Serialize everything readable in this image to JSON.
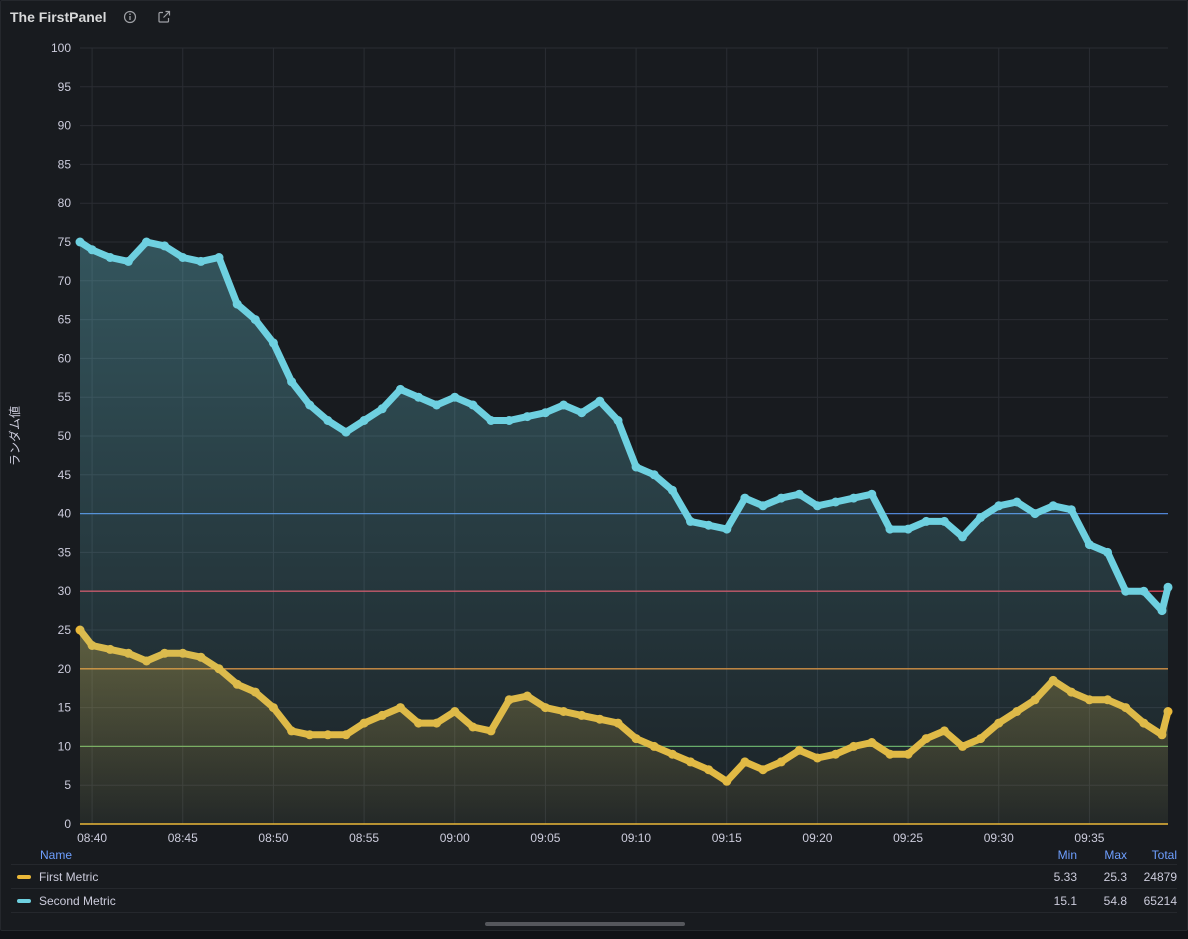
{
  "panel": {
    "title": "The FirstPanel",
    "info_icon": "info-icon",
    "link_icon": "external-link-icon"
  },
  "colors": {
    "first": "#eab839",
    "second": "#6ed0e0",
    "grid": "#2a2d33",
    "text": "#ccccdc"
  },
  "chart_data": {
    "type": "line",
    "ylabel": "ランダム値",
    "ylim": [
      0,
      100
    ],
    "yticks": [
      0,
      5,
      10,
      15,
      20,
      25,
      30,
      35,
      40,
      45,
      50,
      55,
      60,
      65,
      70,
      75,
      80,
      85,
      90,
      95,
      100
    ],
    "xlim": [
      "08:39:20",
      "09:39:20"
    ],
    "xticks": [
      "08:40",
      "08:45",
      "08:50",
      "08:55",
      "09:00",
      "09:05",
      "09:10",
      "09:15",
      "09:20",
      "09:25",
      "09:30",
      "09:35"
    ],
    "thresholds": [
      {
        "value": 10,
        "color": "#73bf69"
      },
      {
        "value": 20,
        "color": "#ff9830"
      },
      {
        "value": 30,
        "color": "#f2495c"
      },
      {
        "value": 40,
        "color": "#5794f2"
      }
    ],
    "series": [
      {
        "name": "First Metric",
        "color": "#eab839",
        "x": [
          "08:39:20",
          "08:40",
          "08:41",
          "08:42",
          "08:43",
          "08:44",
          "08:45",
          "08:46",
          "08:47",
          "08:48",
          "08:49",
          "08:50",
          "08:51",
          "08:52",
          "08:53",
          "08:54",
          "08:55",
          "08:56",
          "08:57",
          "08:58",
          "08:59",
          "09:00",
          "09:01",
          "09:02",
          "09:03",
          "09:04",
          "09:05",
          "09:06",
          "09:07",
          "09:08",
          "09:09",
          "09:10",
          "09:11",
          "09:12",
          "09:13",
          "09:14",
          "09:15",
          "09:16",
          "09:17",
          "09:18",
          "09:19",
          "09:20",
          "09:21",
          "09:22",
          "09:23",
          "09:24",
          "09:25",
          "09:26",
          "09:27",
          "09:28",
          "09:29",
          "09:30",
          "09:31",
          "09:32",
          "09:33",
          "09:34",
          "09:35",
          "09:36",
          "09:37",
          "09:38",
          "09:39",
          "09:39:20"
        ],
        "values": [
          25,
          23,
          22.5,
          22,
          21,
          22,
          22,
          21.5,
          20,
          18,
          17,
          15,
          12,
          11.5,
          11.5,
          11.5,
          13,
          14,
          15,
          13,
          13,
          14.5,
          12.5,
          12,
          16,
          16.5,
          15,
          14.5,
          14,
          13.5,
          13,
          11,
          10,
          9,
          8,
          7,
          5.5,
          8,
          7,
          8,
          9.5,
          8.5,
          9,
          10,
          10.5,
          9,
          9,
          11,
          12,
          10,
          11,
          13,
          14.5,
          16,
          18.5,
          17,
          16,
          16,
          15,
          13,
          11.5,
          14.5
        ]
      },
      {
        "name": "Second Metric",
        "color": "#6ed0e0",
        "x": [
          "08:39:20",
          "08:40",
          "08:41",
          "08:42",
          "08:43",
          "08:44",
          "08:45",
          "08:46",
          "08:47",
          "08:48",
          "08:49",
          "08:50",
          "08:51",
          "08:52",
          "08:53",
          "08:54",
          "08:55",
          "08:56",
          "08:57",
          "08:58",
          "08:59",
          "09:00",
          "09:01",
          "09:02",
          "09:03",
          "09:04",
          "09:05",
          "09:06",
          "09:07",
          "09:08",
          "09:09",
          "09:10",
          "09:11",
          "09:12",
          "09:13",
          "09:14",
          "09:15",
          "09:16",
          "09:17",
          "09:18",
          "09:19",
          "09:20",
          "09:21",
          "09:22",
          "09:23",
          "09:24",
          "09:25",
          "09:26",
          "09:27",
          "09:28",
          "09:29",
          "09:30",
          "09:31",
          "09:32",
          "09:33",
          "09:34",
          "09:35",
          "09:36",
          "09:37",
          "09:38",
          "09:39",
          "09:39:20"
        ],
        "values": [
          75,
          74,
          73,
          72.5,
          75,
          74.5,
          73,
          72.5,
          73,
          67,
          65,
          62,
          57,
          54,
          52,
          50.5,
          52,
          53.5,
          56,
          55,
          54,
          55,
          54,
          52,
          52,
          52.5,
          53,
          54,
          53,
          54.5,
          52,
          46,
          45,
          43,
          39,
          38.5,
          38,
          42,
          41,
          42,
          42.5,
          41,
          41.5,
          42,
          42.5,
          38,
          38,
          39,
          39,
          37,
          39.5,
          41,
          41.5,
          40,
          41,
          40.5,
          36,
          35,
          30,
          30,
          27.5,
          30.5
        ]
      }
    ]
  },
  "legend": {
    "headers": {
      "name": "Name",
      "min": "Min",
      "max": "Max",
      "total": "Total"
    },
    "rows": [
      {
        "name": "First Metric",
        "min": "5.33",
        "max": "25.3",
        "total": "24879"
      },
      {
        "name": "Second Metric",
        "min": "15.1",
        "max": "54.8",
        "total": "65214"
      }
    ]
  }
}
